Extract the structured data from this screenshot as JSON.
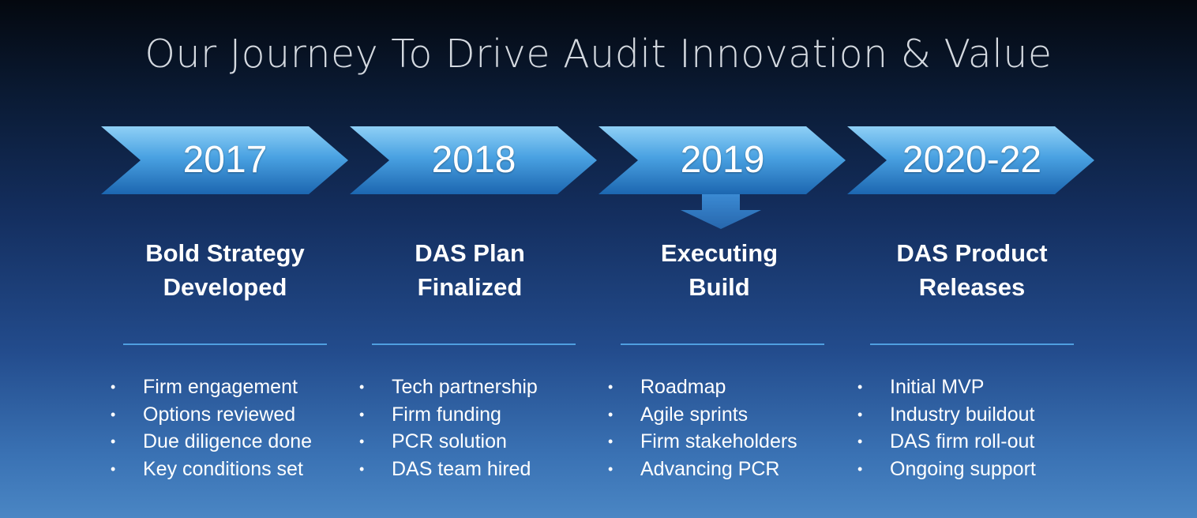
{
  "title": "Our Journey To Drive Audit Innovation & Value",
  "colors": {
    "chevron_light": "#7cc6f2",
    "chevron_dark": "#1f6fb8",
    "rule": "#4f9fe0",
    "text": "#ffffff"
  },
  "stages": [
    {
      "year": "2017",
      "heading_line1": "Bold Strategy",
      "heading_line2": "Developed",
      "bullets": [
        "Firm engagement",
        "Options reviewed",
        "Due diligence done",
        "Key conditions set"
      ]
    },
    {
      "year": "2018",
      "heading_line1": "DAS Plan",
      "heading_line2": "Finalized",
      "bullets": [
        "Tech partnership",
        "Firm funding",
        "PCR solution",
        "DAS team hired"
      ]
    },
    {
      "year": "2019",
      "heading_line1": "Executing",
      "heading_line2": "Build",
      "bullets": [
        "Roadmap",
        "Agile sprints",
        "Firm stakeholders",
        "Advancing PCR"
      ]
    },
    {
      "year": "2020-22",
      "heading_line1": "DAS Product",
      "heading_line2": "Releases",
      "bullets": [
        "Initial MVP",
        "Industry buildout",
        "DAS firm roll-out",
        "Ongoing support"
      ]
    }
  ],
  "current_stage_marker": "down-arrow-icon"
}
